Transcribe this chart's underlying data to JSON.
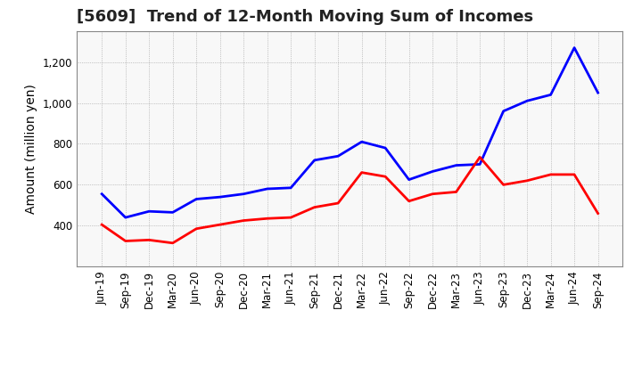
{
  "title": "[5609]  Trend of 12-Month Moving Sum of Incomes",
  "ylabel": "Amount (million yen)",
  "background_color": "#ffffff",
  "plot_background_color": "#f8f8f8",
  "grid_color": "#999999",
  "title_fontsize": 13,
  "axis_label_fontsize": 10,
  "tick_fontsize": 8.5,
  "legend_fontsize": 10,
  "x_labels": [
    "Jun-19",
    "Sep-19",
    "Dec-19",
    "Mar-20",
    "Jun-20",
    "Sep-20",
    "Dec-20",
    "Mar-21",
    "Jun-21",
    "Sep-21",
    "Dec-21",
    "Mar-22",
    "Jun-22",
    "Sep-22",
    "Dec-22",
    "Mar-23",
    "Jun-23",
    "Sep-23",
    "Dec-23",
    "Mar-24",
    "Jun-24",
    "Sep-24"
  ],
  "ordinary_income": [
    555,
    440,
    470,
    465,
    530,
    540,
    555,
    580,
    585,
    720,
    740,
    810,
    780,
    625,
    665,
    695,
    700,
    960,
    1010,
    1040,
    1270,
    1050
  ],
  "net_income": [
    405,
    325,
    330,
    315,
    385,
    405,
    425,
    435,
    440,
    490,
    510,
    660,
    640,
    520,
    555,
    565,
    735,
    600,
    620,
    650,
    650,
    460
  ],
  "ordinary_color": "#0000ff",
  "net_color": "#ff0000",
  "ylim_min": 200,
  "ylim_max": 1350,
  "yticks": [
    400,
    600,
    800,
    1000,
    1200
  ],
  "ytick_labels": [
    "400",
    "600",
    "800",
    "1,000",
    "1,200"
  ],
  "line_width": 2.0
}
